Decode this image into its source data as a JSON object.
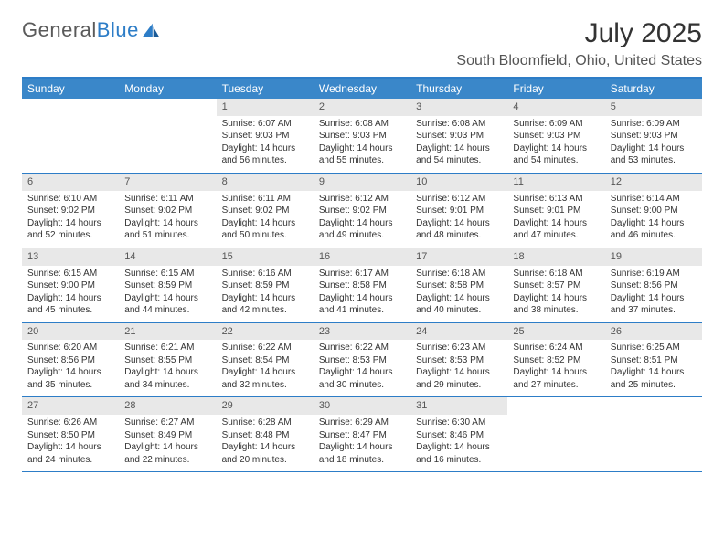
{
  "logo": {
    "text1": "General",
    "text2": "Blue"
  },
  "title": "July 2025",
  "location": "South Bloomfield, Ohio, United States",
  "colors": {
    "header_bg": "#3a87c9",
    "header_text": "#ffffff",
    "border": "#2d7dc7",
    "daynum_bg": "#e8e8e8",
    "text": "#333333",
    "logo_gray": "#5a5a5a",
    "logo_blue": "#2d7dc7"
  },
  "typography": {
    "title_fontsize": 30,
    "location_fontsize": 16,
    "dayheader_fontsize": 12,
    "cell_fontsize": 10,
    "logo_fontsize": 22
  },
  "day_names": [
    "Sunday",
    "Monday",
    "Tuesday",
    "Wednesday",
    "Thursday",
    "Friday",
    "Saturday"
  ],
  "weeks": [
    [
      null,
      null,
      {
        "n": "1",
        "sr": "Sunrise: 6:07 AM",
        "ss": "Sunset: 9:03 PM",
        "dl": "Daylight: 14 hours and 56 minutes."
      },
      {
        "n": "2",
        "sr": "Sunrise: 6:08 AM",
        "ss": "Sunset: 9:03 PM",
        "dl": "Daylight: 14 hours and 55 minutes."
      },
      {
        "n": "3",
        "sr": "Sunrise: 6:08 AM",
        "ss": "Sunset: 9:03 PM",
        "dl": "Daylight: 14 hours and 54 minutes."
      },
      {
        "n": "4",
        "sr": "Sunrise: 6:09 AM",
        "ss": "Sunset: 9:03 PM",
        "dl": "Daylight: 14 hours and 54 minutes."
      },
      {
        "n": "5",
        "sr": "Sunrise: 6:09 AM",
        "ss": "Sunset: 9:03 PM",
        "dl": "Daylight: 14 hours and 53 minutes."
      }
    ],
    [
      {
        "n": "6",
        "sr": "Sunrise: 6:10 AM",
        "ss": "Sunset: 9:02 PM",
        "dl": "Daylight: 14 hours and 52 minutes."
      },
      {
        "n": "7",
        "sr": "Sunrise: 6:11 AM",
        "ss": "Sunset: 9:02 PM",
        "dl": "Daylight: 14 hours and 51 minutes."
      },
      {
        "n": "8",
        "sr": "Sunrise: 6:11 AM",
        "ss": "Sunset: 9:02 PM",
        "dl": "Daylight: 14 hours and 50 minutes."
      },
      {
        "n": "9",
        "sr": "Sunrise: 6:12 AM",
        "ss": "Sunset: 9:02 PM",
        "dl": "Daylight: 14 hours and 49 minutes."
      },
      {
        "n": "10",
        "sr": "Sunrise: 6:12 AM",
        "ss": "Sunset: 9:01 PM",
        "dl": "Daylight: 14 hours and 48 minutes."
      },
      {
        "n": "11",
        "sr": "Sunrise: 6:13 AM",
        "ss": "Sunset: 9:01 PM",
        "dl": "Daylight: 14 hours and 47 minutes."
      },
      {
        "n": "12",
        "sr": "Sunrise: 6:14 AM",
        "ss": "Sunset: 9:00 PM",
        "dl": "Daylight: 14 hours and 46 minutes."
      }
    ],
    [
      {
        "n": "13",
        "sr": "Sunrise: 6:15 AM",
        "ss": "Sunset: 9:00 PM",
        "dl": "Daylight: 14 hours and 45 minutes."
      },
      {
        "n": "14",
        "sr": "Sunrise: 6:15 AM",
        "ss": "Sunset: 8:59 PM",
        "dl": "Daylight: 14 hours and 44 minutes."
      },
      {
        "n": "15",
        "sr": "Sunrise: 6:16 AM",
        "ss": "Sunset: 8:59 PM",
        "dl": "Daylight: 14 hours and 42 minutes."
      },
      {
        "n": "16",
        "sr": "Sunrise: 6:17 AM",
        "ss": "Sunset: 8:58 PM",
        "dl": "Daylight: 14 hours and 41 minutes."
      },
      {
        "n": "17",
        "sr": "Sunrise: 6:18 AM",
        "ss": "Sunset: 8:58 PM",
        "dl": "Daylight: 14 hours and 40 minutes."
      },
      {
        "n": "18",
        "sr": "Sunrise: 6:18 AM",
        "ss": "Sunset: 8:57 PM",
        "dl": "Daylight: 14 hours and 38 minutes."
      },
      {
        "n": "19",
        "sr": "Sunrise: 6:19 AM",
        "ss": "Sunset: 8:56 PM",
        "dl": "Daylight: 14 hours and 37 minutes."
      }
    ],
    [
      {
        "n": "20",
        "sr": "Sunrise: 6:20 AM",
        "ss": "Sunset: 8:56 PM",
        "dl": "Daylight: 14 hours and 35 minutes."
      },
      {
        "n": "21",
        "sr": "Sunrise: 6:21 AM",
        "ss": "Sunset: 8:55 PM",
        "dl": "Daylight: 14 hours and 34 minutes."
      },
      {
        "n": "22",
        "sr": "Sunrise: 6:22 AM",
        "ss": "Sunset: 8:54 PM",
        "dl": "Daylight: 14 hours and 32 minutes."
      },
      {
        "n": "23",
        "sr": "Sunrise: 6:22 AM",
        "ss": "Sunset: 8:53 PM",
        "dl": "Daylight: 14 hours and 30 minutes."
      },
      {
        "n": "24",
        "sr": "Sunrise: 6:23 AM",
        "ss": "Sunset: 8:53 PM",
        "dl": "Daylight: 14 hours and 29 minutes."
      },
      {
        "n": "25",
        "sr": "Sunrise: 6:24 AM",
        "ss": "Sunset: 8:52 PM",
        "dl": "Daylight: 14 hours and 27 minutes."
      },
      {
        "n": "26",
        "sr": "Sunrise: 6:25 AM",
        "ss": "Sunset: 8:51 PM",
        "dl": "Daylight: 14 hours and 25 minutes."
      }
    ],
    [
      {
        "n": "27",
        "sr": "Sunrise: 6:26 AM",
        "ss": "Sunset: 8:50 PM",
        "dl": "Daylight: 14 hours and 24 minutes."
      },
      {
        "n": "28",
        "sr": "Sunrise: 6:27 AM",
        "ss": "Sunset: 8:49 PM",
        "dl": "Daylight: 14 hours and 22 minutes."
      },
      {
        "n": "29",
        "sr": "Sunrise: 6:28 AM",
        "ss": "Sunset: 8:48 PM",
        "dl": "Daylight: 14 hours and 20 minutes."
      },
      {
        "n": "30",
        "sr": "Sunrise: 6:29 AM",
        "ss": "Sunset: 8:47 PM",
        "dl": "Daylight: 14 hours and 18 minutes."
      },
      {
        "n": "31",
        "sr": "Sunrise: 6:30 AM",
        "ss": "Sunset: 8:46 PM",
        "dl": "Daylight: 14 hours and 16 minutes."
      },
      null,
      null
    ]
  ]
}
